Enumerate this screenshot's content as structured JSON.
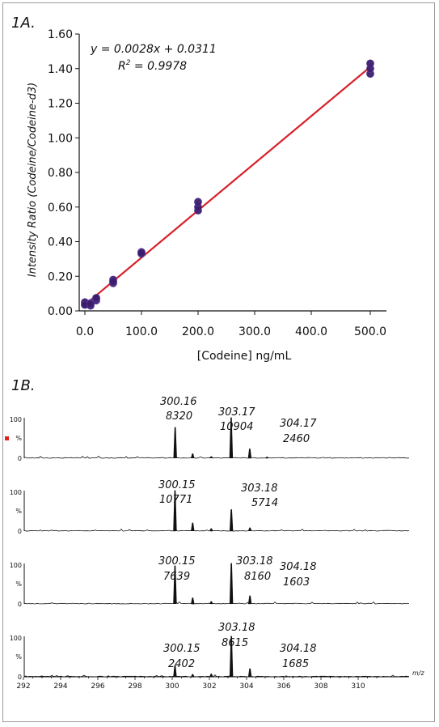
{
  "chart_data": [
    {
      "type": "scatter",
      "panel_label": "1A.",
      "xlabel": "[Codeine] ng/mL",
      "ylabel": "Intensity Ratio (Codeine/Codeine-d3)",
      "x_category_ticks": [
        "0.0",
        "100.0",
        "200.0",
        "300.0",
        "400.0",
        "500.0"
      ],
      "y_ticks": [
        "0.00",
        "0.20",
        "0.40",
        "0.60",
        "0.80",
        "1.00",
        "1.20",
        "1.40",
        "1.60"
      ],
      "ylim": [
        0,
        1.6
      ],
      "equation": "y = 0.0028x + 0.0311",
      "r2_label": "R",
      "r2_sup": "2",
      "r2_value": " = 0.9978",
      "regression": {
        "slope": 0.0028,
        "intercept": 0.0311
      },
      "fit_line": {
        "x": [
          0,
          500
        ],
        "y": [
          0.035,
          1.41
        ]
      },
      "points": [
        {
          "x": 0,
          "y": 0.04
        },
        {
          "x": 0,
          "y": 0.05
        },
        {
          "x": 0,
          "y": 0.035
        },
        {
          "x": 10,
          "y": 0.03
        },
        {
          "x": 10,
          "y": 0.045
        },
        {
          "x": 10,
          "y": 0.04
        },
        {
          "x": 20,
          "y": 0.06
        },
        {
          "x": 20,
          "y": 0.07
        },
        {
          "x": 20,
          "y": 0.075
        },
        {
          "x": 50,
          "y": 0.16
        },
        {
          "x": 50,
          "y": 0.18
        },
        {
          "x": 50,
          "y": 0.17
        },
        {
          "x": 100,
          "y": 0.33
        },
        {
          "x": 100,
          "y": 0.34
        },
        {
          "x": 100,
          "y": 0.335
        },
        {
          "x": 200,
          "y": 0.58
        },
        {
          "x": 200,
          "y": 0.6
        },
        {
          "x": 200,
          "y": 0.63
        },
        {
          "x": 500,
          "y": 1.37
        },
        {
          "x": 500,
          "y": 1.4
        },
        {
          "x": 500,
          "y": 1.43
        }
      ],
      "colors": {
        "points": "#3b1d6e",
        "line": "#d8202c"
      }
    },
    {
      "type": "line",
      "panel_label": "1B.",
      "x_axis_label": "m/z",
      "xlim": [
        291.5,
        311
      ],
      "x_ticks": [
        "292",
        "294",
        "296",
        "298",
        "300",
        "302",
        "304",
        "306",
        "308",
        "310"
      ],
      "y_ticks": [
        "100",
        "%",
        "0"
      ],
      "spectra": [
        {
          "peaks": [
            {
              "mz": 300.16,
              "rel": 0.76
            },
            {
              "mz": 301.1,
              "rel": 0.11
            },
            {
              "mz": 302.1,
              "rel": 0.04
            },
            {
              "mz": 303.17,
              "rel": 1.0
            },
            {
              "mz": 304.17,
              "rel": 0.23
            },
            {
              "mz": 305.1,
              "rel": 0.03
            }
          ],
          "labels": [
            {
              "mz": "300.16",
              "intensity": "8320"
            },
            {
              "mz": "303.17",
              "intensity": "10904"
            },
            {
              "mz": "304.17",
              "intensity": "2460"
            }
          ]
        },
        {
          "peaks": [
            {
              "mz": 300.15,
              "rel": 1.0
            },
            {
              "mz": 301.1,
              "rel": 0.2
            },
            {
              "mz": 302.1,
              "rel": 0.06
            },
            {
              "mz": 303.18,
              "rel": 0.53
            },
            {
              "mz": 304.18,
              "rel": 0.08
            }
          ],
          "labels": [
            {
              "mz": "300.15",
              "intensity": "10771"
            },
            {
              "mz": "303.18",
              "intensity": "5714"
            }
          ]
        },
        {
          "peaks": [
            {
              "mz": 300.15,
              "rel": 0.94
            },
            {
              "mz": 301.1,
              "rel": 0.15
            },
            {
              "mz": 302.1,
              "rel": 0.06
            },
            {
              "mz": 303.18,
              "rel": 1.0
            },
            {
              "mz": 304.18,
              "rel": 0.2
            }
          ],
          "labels": [
            {
              "mz": "300.15",
              "intensity": "7639"
            },
            {
              "mz": "303.18",
              "intensity": "8160"
            },
            {
              "mz": "304.18",
              "intensity": "1603"
            }
          ]
        },
        {
          "peaks": [
            {
              "mz": 300.15,
              "rel": 0.28
            },
            {
              "mz": 301.1,
              "rel": 0.06
            },
            {
              "mz": 302.1,
              "rel": 0.07
            },
            {
              "mz": 303.18,
              "rel": 1.0
            },
            {
              "mz": 304.18,
              "rel": 0.2
            }
          ],
          "labels": [
            {
              "mz": "300.15",
              "intensity": "2402"
            },
            {
              "mz": "303.18",
              "intensity": "8615"
            },
            {
              "mz": "304.18",
              "intensity": "1685"
            }
          ]
        }
      ],
      "colors": {
        "trace": "#111111",
        "marker": "#e02020"
      }
    }
  ]
}
